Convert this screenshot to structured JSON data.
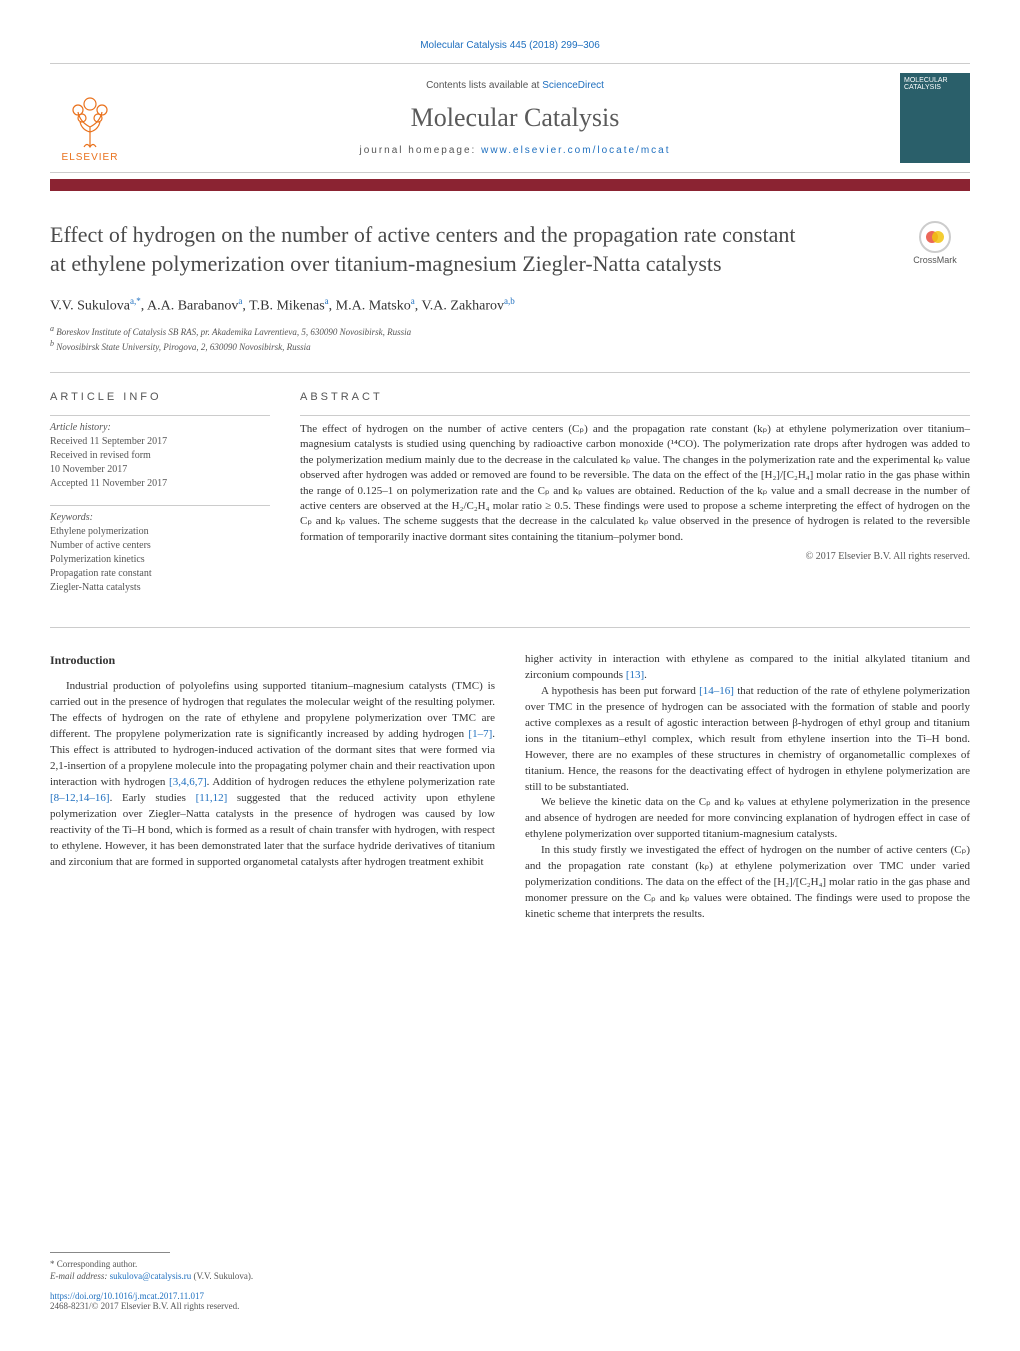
{
  "colors": {
    "accent": "#8b2332",
    "link": "#1e6fbf",
    "elsevier": "#e9711c",
    "cover": "#2a5f6a",
    "text": "#333333",
    "muted": "#555555",
    "border": "#cccccc"
  },
  "header": {
    "citation": "Molecular Catalysis 445 (2018) 299–306",
    "contents_prefix": "Contents lists available at ",
    "contents_link": "ScienceDirect",
    "journal_name": "Molecular Catalysis",
    "homepage_prefix": "journal homepage: ",
    "homepage_url": "www.elsevier.com/locate/mcat",
    "elsevier_label": "ELSEVIER",
    "cover_text": "MOLECULAR CATALYSIS"
  },
  "crossmark": {
    "label": "CrossMark"
  },
  "article": {
    "title": "Effect of hydrogen on the number of active centers and the propagation rate constant at ethylene polymerization over titanium-magnesium Ziegler-Natta catalysts",
    "authors_html": "V.V. Sukulova<sup>a,*</sup>, A.A. Barabanov<sup>a</sup>, T.B. Mikenas<sup>a</sup>, M.A. Matsko<sup>a</sup>, V.A. Zakharov<sup>a,b</sup>",
    "affiliations": [
      "a Boreskov Institute of Catalysis SB RAS, pr. Akademika Lavrentieva, 5, 630090 Novosibirsk, Russia",
      "b Novosibirsk State University, Pirogova, 2, 630090 Novosibirsk, Russia"
    ]
  },
  "info": {
    "heading": "ARTICLE INFO",
    "history_label": "Article history:",
    "history": [
      "Received 11 September 2017",
      "Received in revised form",
      "10 November 2017",
      "Accepted 11 November 2017"
    ],
    "keywords_label": "Keywords:",
    "keywords": [
      "Ethylene polymerization",
      "Number of active centers",
      "Polymerization kinetics",
      "Propagation rate constant",
      "Ziegler-Natta catalysts"
    ]
  },
  "abstract": {
    "heading": "ABSTRACT",
    "text": "The effect of hydrogen on the number of active centers (Cₚ) and the propagation rate constant (kₚ) at ethylene polymerization over titanium–magnesium catalysts is studied using quenching by radioactive carbon monoxide (¹⁴CO). The polymerization rate drops after hydrogen was added to the polymerization medium mainly due to the decrease in the calculated kₚ value. The changes in the polymerization rate and the experimental kₚ value observed after hydrogen was added or removed are found to be reversible. The data on the effect of the [H₂]/[C₂H₄] molar ratio in the gas phase within the range of 0.125–1 on polymerization rate and the Cₚ and kₚ values are obtained. Reduction of the kₚ value and a small decrease in the number of active centers are observed at the H₂/C₂H₄ molar ratio ≥ 0.5. These findings were used to propose a scheme interpreting the effect of hydrogen on the Cₚ and kₚ values. The scheme suggests that the decrease in the calculated kₚ value observed in the presence of hydrogen is related to the reversible formation of temporarily inactive dormant sites containing the titanium–polymer bond.",
    "copyright": "© 2017 Elsevier B.V. All rights reserved."
  },
  "body": {
    "intro_heading": "Introduction",
    "col1": {
      "p1_pre": "Industrial production of polyolefins using supported titanium–magnesium catalysts (TMC) is carried out in the presence of hydrogen that regulates the molecular weight of the resulting polymer. The effects of hydrogen on the rate of ethylene and propylene polymerization over TMC are different. The propylene polymerization rate is significantly increased by adding hydrogen ",
      "p1_ref1": "[1–7]",
      "p1_mid": ". This effect is attributed to hydrogen-induced activation of the dormant sites that were formed via 2,1-insertion of a propylene molecule into the propagating polymer chain and their reactivation upon interaction with hydrogen ",
      "p1_ref2": "[3,4,6,7]",
      "p1_mid2": ". Addition of hydrogen reduces the ethylene polymerization rate ",
      "p1_ref3": "[8–12,14–16]",
      "p1_mid3": ". Early studies ",
      "p1_ref4": "[11,12]",
      "p1_post": " suggested that the reduced activity upon ethylene polymerization over Ziegler–Natta catalysts in the presence of hydrogen was caused by low reactivity of the Ti–H bond, which is formed as a result of chain transfer with hydrogen, with respect to ethylene. However, it has been demonstrated later that the surface hydride derivatives of titanium and zirconium that are formed in supported organometal catalysts after hydrogen treatment exhibit"
    },
    "col2": {
      "p1_pre": "higher activity in interaction with ethylene as compared to the initial alkylated titanium and zirconium compounds ",
      "p1_ref1": "[13]",
      "p1_post": ".",
      "p2_pre": "A hypothesis has been put forward ",
      "p2_ref1": "[14–16]",
      "p2_post": " that reduction of the rate of ethylene polymerization over TMC in the presence of hydrogen can be associated with the formation of stable and poorly active complexes as a result of agostic interaction between β-hydrogen of ethyl group and titanium ions in the titanium–ethyl complex, which result from ethylene insertion into the Ti–H bond. However, there are no examples of these structures in chemistry of organometallic complexes of titanium. Hence, the reasons for the deactivating effect of hydrogen in ethylene polymerization are still to be substantiated.",
      "p3": "We believe the kinetic data on the Cₚ and kₚ values at ethylene polymerization in the presence and absence of hydrogen are needed for more convincing explanation of hydrogen effect in case of ethylene polymerization over supported titanium-magnesium catalysts.",
      "p4": "In this study firstly we investigated the effect of hydrogen on the number of active centers (Cₚ) and the propagation rate constant (kₚ) at ethylene polymerization over TMC under varied polymerization conditions. The data on the effect of the [H₂]/[C₂H₄] molar ratio in the gas phase and monomer pressure on the Cₚ and kₚ values were obtained. The findings were used to propose the kinetic scheme that interprets the results."
    }
  },
  "footer": {
    "corr": "* Corresponding author.",
    "email_label": "E-mail address: ",
    "email": "sukulova@catalysis.ru",
    "email_author": " (V.V. Sukulova).",
    "doi": "https://doi.org/10.1016/j.mcat.2017.11.017",
    "issn": "2468-8231/© 2017 Elsevier B.V. All rights reserved."
  }
}
